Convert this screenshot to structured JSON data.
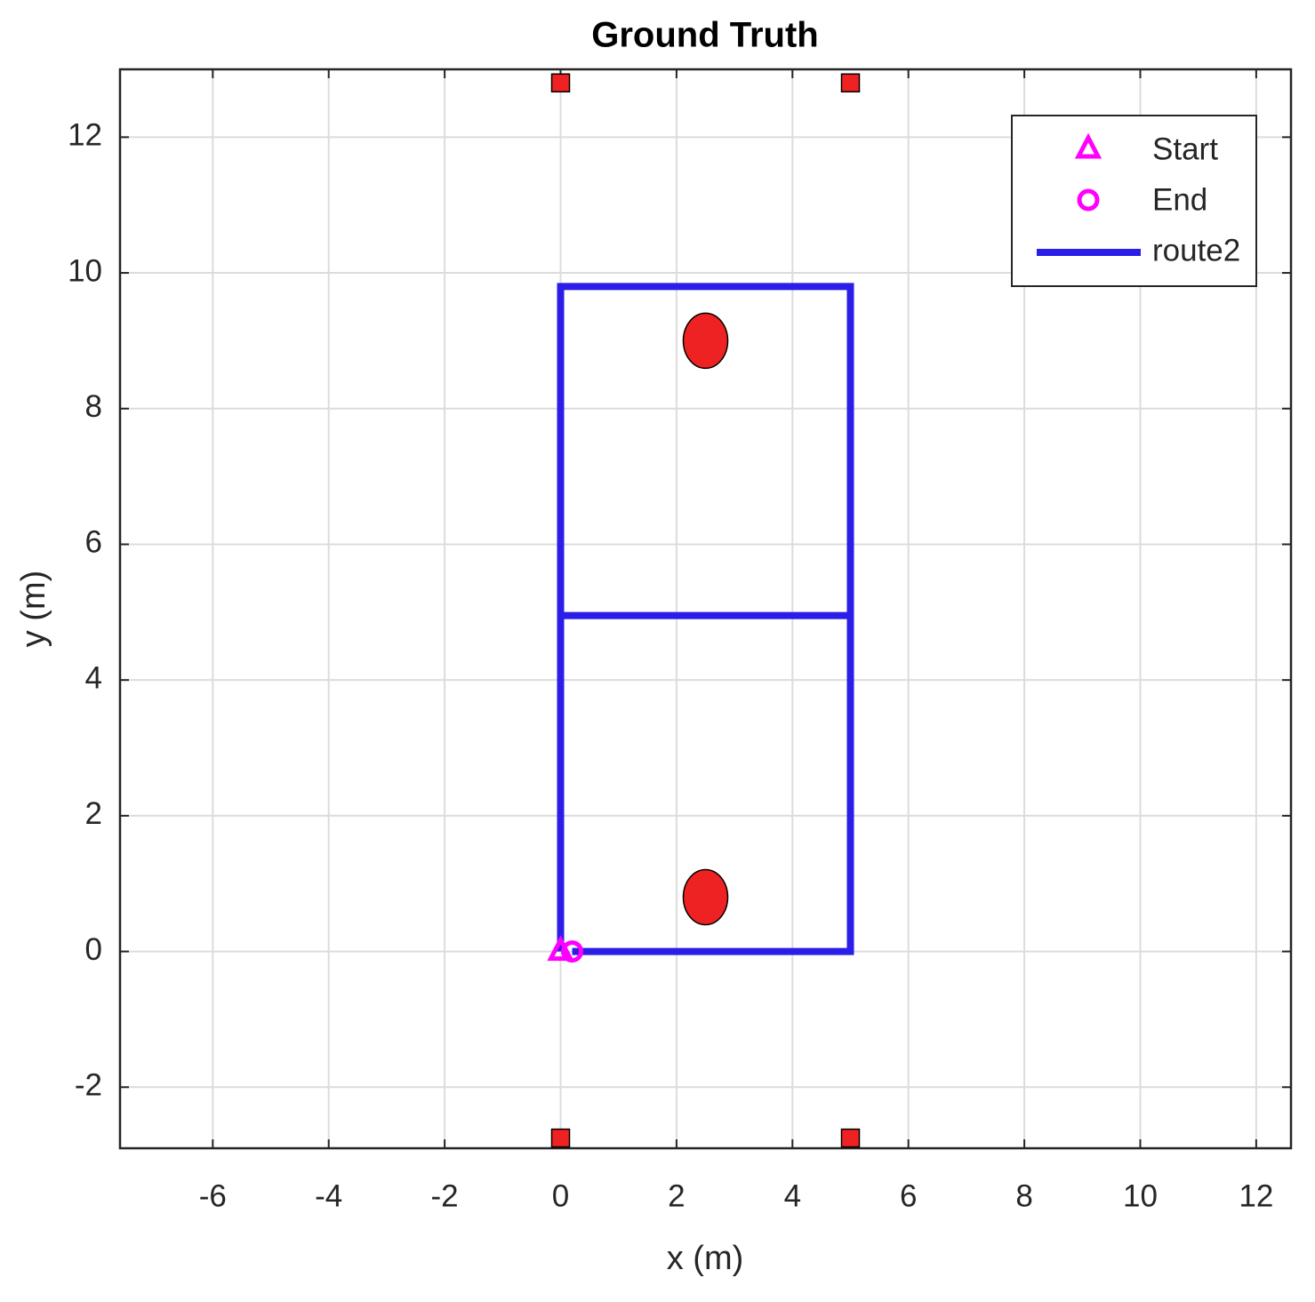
{
  "chart_data": {
    "type": "line",
    "title": "Ground Truth",
    "xlabel": "x (m)",
    "ylabel": "y (m)",
    "xlim": [
      -7.6,
      12.6
    ],
    "ylim": [
      -2.9,
      13
    ],
    "xticks": [
      -6,
      -4,
      -2,
      0,
      2,
      4,
      6,
      8,
      10,
      12
    ],
    "yticks": [
      -2,
      0,
      2,
      4,
      6,
      8,
      10,
      12
    ],
    "grid": true,
    "legend": "northeast",
    "series": [
      {
        "name": "Start",
        "color": "#ff00ff",
        "marker": "triangle",
        "x": [
          0
        ],
        "y": [
          0
        ]
      },
      {
        "name": "End",
        "color": "#ff00ff",
        "marker": "circle",
        "x": [
          0.2
        ],
        "y": [
          0
        ]
      },
      {
        "name": "route2",
        "color": "#2b1ee8",
        "marker": "none",
        "x": [
          0,
          0,
          5,
          5,
          0,
          5,
          5,
          0.2
        ],
        "y": [
          0,
          9.8,
          9.8,
          4.95,
          4.95,
          4.95,
          0,
          0
        ]
      },
      {
        "color": "#ee2222",
        "marker": "filled-circle",
        "x": [
          2.5,
          2.5
        ],
        "y": [
          9,
          0.8
        ]
      },
      {
        "color": "#ee2222",
        "marker": "filled-square",
        "x": [
          0,
          5,
          0,
          5
        ],
        "y": [
          12.8,
          12.8,
          -2.75,
          -2.75
        ]
      }
    ]
  }
}
